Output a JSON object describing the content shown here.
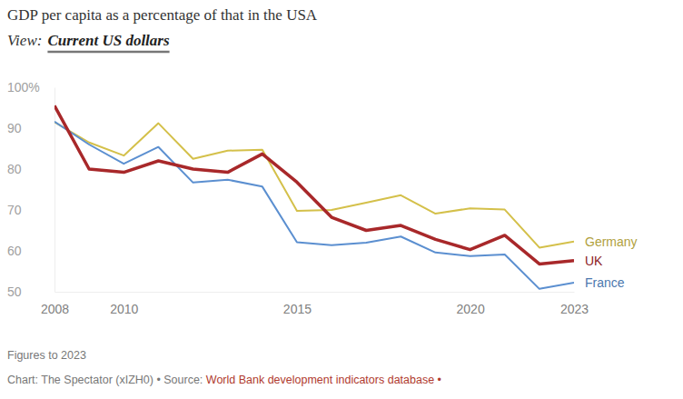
{
  "chart_data": {
    "type": "line",
    "title": "GDP per capita as a percentage of that in the USA",
    "subtitle_label": "View:",
    "subtitle": "Current US dollars",
    "note": "Figures to 2023",
    "credit": "Chart: The Spectator (xIZH0) • Source: ",
    "source": "World Bank development indicators database •",
    "x": [
      2008,
      2009,
      2010,
      2011,
      2012,
      2013,
      2014,
      2015,
      2016,
      2017,
      2018,
      2019,
      2020,
      2021,
      2022,
      2023
    ],
    "xlim": [
      2008,
      2023
    ],
    "xticks": [
      2008,
      2010,
      2015,
      2020,
      2023
    ],
    "ylim": [
      50,
      100
    ],
    "yticks": [
      50,
      60,
      70,
      80,
      90,
      {
        "value": 100,
        "label": "100%"
      }
    ],
    "grid": false,
    "series": [
      {
        "name": "Germany",
        "color": "#d4c04a",
        "line_style": "solid",
        "values": [
          91.5,
          86.5,
          83.3,
          91.2,
          82.5,
          84.5,
          84.7,
          69.8,
          70.0,
          71.8,
          73.6,
          69.1,
          70.4,
          70.1,
          60.8,
          62.3
        ]
      },
      {
        "name": "UK",
        "color": "#a8282a",
        "line_style": "thick",
        "values": [
          95.5,
          80.0,
          79.2,
          82.0,
          80.0,
          79.2,
          83.7,
          76.8,
          68.2,
          65.0,
          66.2,
          62.8,
          60.3,
          63.8,
          56.8,
          57.6
        ]
      },
      {
        "name": "France",
        "color": "#5b8fd0",
        "line_style": "solid",
        "values": [
          91.6,
          86.0,
          81.3,
          85.4,
          76.7,
          77.4,
          75.7,
          62.1,
          61.4,
          62.0,
          63.5,
          59.6,
          58.7,
          59.1,
          50.7,
          52.2
        ]
      }
    ]
  }
}
